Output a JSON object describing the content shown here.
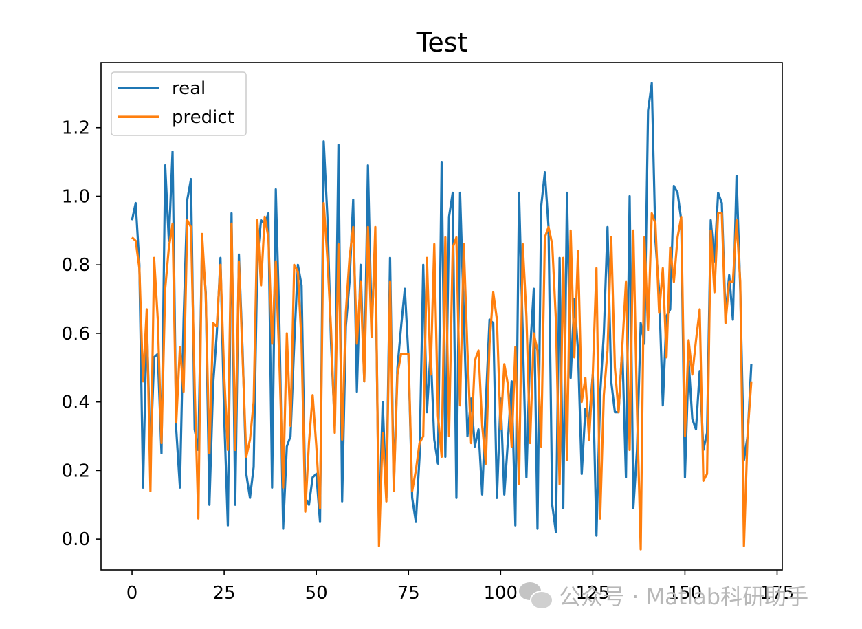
{
  "chart_data": {
    "type": "line",
    "title": "Test",
    "xlabel": "",
    "ylabel": "",
    "xlim": [
      -8.4,
      176.4
    ],
    "ylim": [
      -0.09,
      1.39
    ],
    "xticks": [
      0,
      25,
      50,
      75,
      100,
      125,
      150,
      175
    ],
    "yticks": [
      0.0,
      0.2,
      0.4,
      0.6,
      0.8,
      1.0,
      1.2
    ],
    "ytick_labels": [
      "0.0",
      "0.2",
      "0.4",
      "0.6",
      "0.8",
      "1.0",
      "1.2"
    ],
    "grid": false,
    "legend_position": "top-left",
    "series": [
      {
        "name": "real",
        "color": "#1f77b4",
        "values": [
          0.93,
          0.98,
          0.8,
          0.15,
          0.64,
          0.24,
          0.53,
          0.54,
          0.25,
          1.09,
          0.87,
          1.13,
          0.32,
          0.15,
          0.64,
          0.99,
          1.05,
          0.32,
          0.26,
          0.86,
          0.72,
          0.1,
          0.45,
          0.6,
          0.82,
          0.36,
          0.04,
          0.95,
          0.1,
          0.83,
          0.55,
          0.19,
          0.12,
          0.21,
          0.82,
          0.93,
          0.92,
          0.95,
          0.15,
          1.02,
          0.62,
          0.03,
          0.27,
          0.3,
          0.57,
          0.8,
          0.74,
          0.12,
          0.1,
          0.18,
          0.19,
          0.05,
          1.16,
          0.94,
          0.57,
          0.33,
          1.15,
          0.11,
          0.62,
          0.75,
          0.99,
          0.43,
          0.8,
          0.46,
          1.09,
          0.62,
          0.86,
          0.02,
          0.4,
          0.12,
          0.82,
          0.15,
          0.5,
          0.62,
          0.73,
          0.53,
          0.12,
          0.05,
          0.24,
          0.8,
          0.37,
          0.55,
          0.29,
          0.22,
          1.1,
          0.24,
          0.94,
          1.01,
          0.12,
          1.01,
          0.66,
          0.3,
          0.41,
          0.27,
          0.32,
          0.13,
          0.4,
          0.64,
          0.63,
          0.12,
          0.41,
          0.13,
          0.29,
          0.46,
          0.04,
          1.01,
          0.6,
          0.18,
          0.55,
          0.73,
          0.03,
          0.97,
          1.07,
          0.91,
          0.1,
          0.02,
          0.82,
          0.09,
          1.01,
          0.47,
          0.7,
          0.55,
          0.19,
          0.38,
          0.34,
          0.48,
          0.01,
          0.42,
          0.6,
          0.91,
          0.46,
          0.37,
          0.37,
          0.56,
          0.18,
          1.0,
          0.09,
          0.26,
          0.63,
          0.57,
          1.25,
          1.33,
          0.87,
          0.72,
          0.39,
          0.65,
          0.67,
          1.03,
          1.01,
          0.93,
          0.18,
          0.52,
          0.35,
          0.32,
          0.49,
          0.26,
          0.31,
          0.93,
          0.81,
          1.01,
          0.98,
          0.65,
          0.77,
          0.64,
          1.06,
          0.73,
          0.23,
          0.3,
          0.51
        ]
      },
      {
        "name": "predict",
        "color": "#ff7f0e",
        "values": [
          0.88,
          0.87,
          0.79,
          0.46,
          0.67,
          0.14,
          0.82,
          0.64,
          0.28,
          0.73,
          0.85,
          0.92,
          0.34,
          0.56,
          0.43,
          0.93,
          0.91,
          0.44,
          0.06,
          0.89,
          0.71,
          0.25,
          0.63,
          0.62,
          0.8,
          0.48,
          0.26,
          0.92,
          0.26,
          0.81,
          0.53,
          0.24,
          0.29,
          0.4,
          0.93,
          0.74,
          0.94,
          0.88,
          0.57,
          0.81,
          0.51,
          0.15,
          0.6,
          0.33,
          0.8,
          0.78,
          0.57,
          0.08,
          0.28,
          0.42,
          0.27,
          0.09,
          0.98,
          0.82,
          0.61,
          0.31,
          0.86,
          0.29,
          0.66,
          0.82,
          0.91,
          0.57,
          0.75,
          0.46,
          0.91,
          0.59,
          0.91,
          -0.02,
          0.31,
          0.11,
          0.75,
          0.14,
          0.48,
          0.54,
          0.54,
          0.54,
          0.14,
          0.2,
          0.28,
          0.3,
          0.82,
          0.48,
          0.86,
          0.36,
          0.24,
          0.88,
          0.3,
          0.85,
          0.88,
          0.39,
          0.86,
          0.55,
          0.28,
          0.52,
          0.55,
          0.33,
          0.22,
          0.57,
          0.72,
          0.64,
          0.32,
          0.51,
          0.45,
          0.27,
          0.56,
          0.16,
          0.86,
          0.65,
          0.28,
          0.6,
          0.55,
          0.27,
          0.88,
          0.91,
          0.86,
          0.64,
          0.16,
          0.82,
          0.23,
          0.9,
          0.53,
          0.84,
          0.4,
          0.47,
          0.29,
          0.48,
          0.79,
          0.06,
          0.42,
          0.55,
          0.88,
          0.5,
          0.37,
          0.56,
          0.75,
          0.26,
          0.9,
          0.38,
          -0.03,
          0.88,
          0.61,
          0.95,
          0.92,
          0.66,
          0.79,
          0.53,
          0.85,
          0.75,
          0.88,
          0.94,
          0.3,
          0.58,
          0.48,
          0.58,
          0.67,
          0.17,
          0.19,
          0.9,
          0.72,
          0.95,
          0.95,
          0.63,
          0.75,
          0.75,
          0.93,
          0.75,
          -0.02,
          0.31,
          0.46
        ]
      }
    ]
  },
  "watermark": {
    "text": "公众号 · Matlab科研助手",
    "icon": "wechat-icon"
  }
}
